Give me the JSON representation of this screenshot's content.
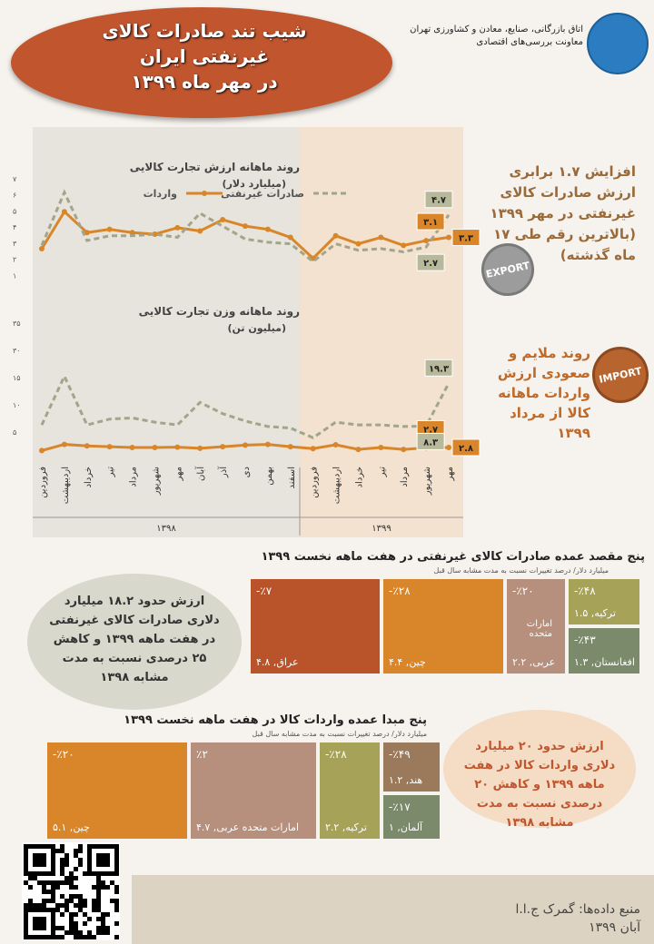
{
  "title_lines": [
    "شیب تند صادرات کالای",
    "غیرنفتی ایران",
    "در مهر ماه ۱۳۹۹"
  ],
  "org_lines": [
    "اتاق بازرگانی، صنایع، معادن و کشاورزی تهران",
    "معاونت بررسی‌های اقتصادی"
  ],
  "export_note": "افزایش ۱.۷ برابری ارزش صادرات کالای غیرنفتی در مهر ۱۳۹۹ (بالاترین رقم طی ۱۷ ماه گذشته)",
  "import_note": "روند ملایم و صعودی ارزش واردات ماهانه کالا از مرداد ۱۳۹۹",
  "export_stamp": "EXPORT",
  "import_stamp": "IMPORT",
  "colors": {
    "imports": "#d9862a",
    "exports": "#a2a58a",
    "band": "#f2e2cf"
  },
  "chart_data": [
    {
      "type": "line",
      "title": "روند ماهانه ارزش تجارت کالایی",
      "subtitle": "(میلیارد دلار)",
      "legend": [
        "واردات",
        "صادرات غیرنفتی"
      ],
      "ylim": [
        0,
        7
      ],
      "yticks": [
        "۷",
        "۶",
        "۵",
        "۴",
        "۳",
        "۲",
        "۱"
      ],
      "series": [
        {
          "name": "واردات",
          "values": [
            2.6,
            4.9,
            3.6,
            3.8,
            3.6,
            3.5,
            3.9,
            3.7,
            4.4,
            4.0,
            3.8,
            3.3,
            2.0,
            3.4,
            2.9,
            3.3,
            2.8,
            3.1,
            3.3
          ]
        },
        {
          "name": "صادرات غیرنفتی",
          "values": [
            2.8,
            6.1,
            3.1,
            3.4,
            3.4,
            3.5,
            3.3,
            4.8,
            4.0,
            3.2,
            3.0,
            2.9,
            1.8,
            2.9,
            2.5,
            2.6,
            2.4,
            2.7,
            4.7
          ]
        }
      ],
      "labels": {
        "imp_prev": "۳.۱",
        "imp_last": "۳.۳",
        "exp_prev": "۲.۷",
        "exp_last": "۴.۷"
      }
    },
    {
      "type": "line",
      "title": "روند ماهانه وزن تجارت کالایی",
      "subtitle": "(میلیون تن)",
      "ylim": [
        0,
        35
      ],
      "yticks": [
        "۳۵",
        "۳۰",
        "۱۵",
        "۱۰",
        "۵"
      ],
      "series": [
        {
          "name": "واردات",
          "values": [
            2.0,
            3.6,
            3.2,
            3.0,
            2.8,
            2.8,
            2.9,
            2.6,
            3.0,
            3.4,
            3.6,
            3.0,
            2.5,
            3.5,
            2.3,
            2.8,
            2.3,
            2.7,
            2.8
          ]
        },
        {
          "name": "صادرات غیرنفتی",
          "values": [
            8.6,
            21.1,
            8.6,
            10.1,
            10.4,
            9.3,
            8.6,
            14.4,
            11.5,
            9.6,
            8.2,
            7.8,
            5.3,
            9.3,
            8.6,
            8.6,
            8.2,
            8.3,
            19.3
          ]
        }
      ],
      "labels": {
        "imp_prev": "۲.۷",
        "imp_last": "۲.۸",
        "exp_prev": "۸.۳",
        "exp_last": "۱۹.۳"
      }
    }
  ],
  "months": [
    "فروردین",
    "اردیبهشت",
    "خرداد",
    "تیر",
    "مرداد",
    "شهریور",
    "مهر",
    "آبان",
    "آذر",
    "دی",
    "بهمن",
    "اسفند",
    "فروردین",
    "اردیبهشت",
    "خرداد",
    "تیر",
    "مرداد",
    "شهریور",
    "مهر"
  ],
  "years": [
    "۱۳۹۸",
    "۱۳۹۹"
  ],
  "exports_section": {
    "title": "پنج مقصد عمده صادرات کالای غیرنفتی در هفت ماهه نخست ۱۳۹۹",
    "subtitle": "میلیارد دلار/ درصد تغییرات نسبت به مدت مشابه سال قبل",
    "items": [
      {
        "label": "۴.۸ ,عراق",
        "pct": "-٪۷",
        "value": 4.8,
        "color": "#b8532a"
      },
      {
        "label": "۴.۴ ,چین",
        "pct": "-٪۲۸",
        "value": 4.4,
        "color": "#d9862a"
      },
      {
        "label": "۲.۲ ,عربی",
        "pct": "-٪۲۰",
        "extra": "امارات متحده",
        "value": 2.2,
        "color": "#b78f7d"
      },
      {
        "label": "۱.۵ ,ترکیه",
        "pct": "-٪۴۸",
        "value": 1.5,
        "color": "#a6a358"
      },
      {
        "label": "۱.۳ ,افغانستان",
        "pct": "-٪۴۳",
        "value": 1.3,
        "color": "#7a8a6a"
      }
    ],
    "note": "ارزش حدود ۱۸.۲ میلیارد دلاری صادرات کالای غیرنفتی در هفت ماهه ۱۳۹۹ و کاهش ۲۵ درصدی نسبت به مدت مشابه ۱۳۹۸"
  },
  "imports_section": {
    "title": "پنج مبدا عمده واردات کالا در هفت ماهه نخست ۱۳۹۹",
    "subtitle": "میلیارد دلار/ درصد تغییرات نسبت به مدت مشابه سال قبل",
    "items": [
      {
        "label": "۵.۱ ,چین",
        "pct": "-٪۲۰",
        "value": 5.1,
        "color": "#d9862a"
      },
      {
        "label": "۴.۷ ,امارات متحده عربی",
        "pct": "٪۲",
        "value": 4.7,
        "color": "#b78f7d"
      },
      {
        "label": "۲.۲ ,ترکیه",
        "pct": "-٪۲۸",
        "value": 2.2,
        "color": "#a6a358"
      },
      {
        "label": "۱.۲ ,هند",
        "pct": "-٪۴۹",
        "value": 1.2,
        "color": "#9a7a5a"
      },
      {
        "label": "۱ ,آلمان",
        "pct": "-٪۱۷",
        "value": 1.0,
        "color": "#7a8a6a"
      }
    ],
    "note": "ارزش حدود ۲۰ میلیارد دلاری واردات کالا در هفت ماهه ۱۳۹۹ و کاهش ۲۰ درصدی نسبت به مدت مشابه ۱۳۹۸"
  },
  "source_lines": [
    "منبع داده‌ها: گمرک ج.ا.ا",
    "آبان ۱۳۹۹"
  ]
}
